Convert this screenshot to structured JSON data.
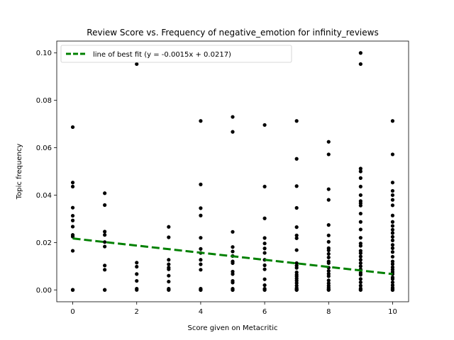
{
  "chart_data": {
    "type": "scatter",
    "title": "Review Score vs. Frequency of negative_emotion for infinity_reviews",
    "xlabel": "Score given on Metacritic",
    "ylabel": "Topic frequency",
    "xlim": [
      -0.5,
      10.5
    ],
    "ylim": [
      -0.005,
      0.105
    ],
    "xticks": [
      0,
      2,
      4,
      6,
      8,
      10
    ],
    "xtick_labels": [
      "0",
      "2",
      "4",
      "6",
      "8",
      "10"
    ],
    "yticks": [
      0.0,
      0.02,
      0.04,
      0.06,
      0.08,
      0.1
    ],
    "ytick_labels": [
      "0.00",
      "0.02",
      "0.04",
      "0.06",
      "0.08",
      "0.10"
    ],
    "grid": false,
    "legend_position": "top-left",
    "colors": {
      "points": "#000000",
      "fit_line": "#008000"
    },
    "series": [
      {
        "name": "",
        "type": "scatter",
        "x": [
          0,
          0,
          0,
          0,
          0,
          0,
          0,
          0,
          0,
          0,
          0,
          0,
          0,
          1,
          1,
          1,
          1,
          1,
          1,
          1,
          1,
          1,
          1,
          2,
          2,
          2,
          2,
          2,
          2,
          2,
          3,
          3,
          3,
          3,
          3,
          3,
          3,
          3,
          3,
          3,
          3,
          4,
          4,
          4,
          4,
          4,
          4,
          4,
          4,
          4,
          4,
          4,
          4,
          4,
          4,
          5,
          5,
          5,
          5,
          5,
          5,
          5,
          5,
          5,
          5,
          5,
          5,
          5,
          5,
          5,
          5,
          6,
          6,
          6,
          6,
          6,
          6,
          6,
          6,
          6,
          6,
          6,
          6,
          6,
          6,
          6,
          7,
          7,
          7,
          7,
          7,
          7,
          7,
          7,
          7,
          7,
          7,
          7,
          7,
          7,
          7,
          7,
          7,
          7,
          7,
          7,
          7,
          7,
          7,
          8,
          8,
          8,
          8,
          8,
          8,
          8,
          8,
          8,
          8,
          8,
          8,
          8,
          8,
          8,
          8,
          8,
          8,
          8,
          8,
          8,
          8,
          8,
          8,
          9,
          9,
          9,
          9,
          9,
          9,
          9,
          9,
          9,
          9,
          9,
          9,
          9,
          9,
          9,
          9,
          9,
          9,
          9,
          9,
          9,
          9,
          9,
          9,
          9,
          9,
          9,
          9,
          9,
          9,
          9,
          10,
          10,
          10,
          10,
          10,
          10,
          10,
          10,
          10,
          10,
          10,
          10,
          10,
          10,
          10,
          10,
          10,
          10,
          10,
          10,
          10,
          10,
          10,
          10,
          10,
          10,
          10,
          10,
          10,
          10,
          10,
          10,
          10
        ],
        "y": [
          0.0687,
          0.0453,
          0.0436,
          0.0347,
          0.0313,
          0.0293,
          0.0267,
          0.0232,
          0.0225,
          0.0165,
          0,
          0,
          0,
          0.0408,
          0.0358,
          0.0246,
          0.0232,
          0.0202,
          0.0183,
          0.0103,
          0.0085,
          0,
          0,
          0.0953,
          0.0115,
          0.0098,
          0.0067,
          0.0038,
          0.0005,
          0,
          0.0266,
          0.0222,
          0.0127,
          0.0108,
          0.0094,
          0.0087,
          0.006,
          0.0035,
          0.0005,
          0,
          0,
          0.0713,
          0.0445,
          0.0345,
          0.0314,
          0.022,
          0.0173,
          0.0156,
          0.0127,
          0.0108,
          0.0085,
          0.0005,
          0,
          0,
          0,
          0.073,
          0.0667,
          0.0245,
          0.0181,
          0.0162,
          0.0143,
          0.012,
          0.0113,
          0.0077,
          0.0067,
          0.0038,
          0.0031,
          0.0005,
          0,
          0,
          0,
          0.0696,
          0.0436,
          0.0302,
          0.0219,
          0.0196,
          0.0175,
          0.0156,
          0.0127,
          0.0104,
          0.0087,
          0.0045,
          0.002,
          0.0005,
          0,
          0,
          0.0713,
          0.0553,
          0.0438,
          0.0346,
          0.0265,
          0.023,
          0.0218,
          0.0168,
          0.0113,
          0.0102,
          0.0093,
          0.0074,
          0.0064,
          0.0057,
          0.0048,
          0.0039,
          0.0029,
          0.0018,
          0.0008,
          0.0004,
          0,
          0,
          0,
          0.0625,
          0.0572,
          0.0425,
          0.038,
          0.0274,
          0.023,
          0.0203,
          0.0176,
          0.0167,
          0.0152,
          0.0137,
          0.012,
          0.0113,
          0.0094,
          0.008,
          0.0068,
          0.0058,
          0.004,
          0.0028,
          0.0018,
          0.001,
          0.0004,
          0,
          0,
          0.1,
          0.0953,
          0.0512,
          0.05,
          0.0472,
          0.0436,
          0.04,
          0.0375,
          0.0366,
          0.0356,
          0.0322,
          0.0287,
          0.0255,
          0.022,
          0.0196,
          0.0186,
          0.0165,
          0.0155,
          0.0141,
          0.0127,
          0.0113,
          0.01,
          0.0087,
          0.0072,
          0.0064,
          0.0046,
          0.0032,
          0.0018,
          0.0006,
          0,
          0,
          0.0713,
          0.0572,
          0.0453,
          0.0418,
          0.04,
          0.038,
          0.0357,
          0.0314,
          0.0287,
          0.027,
          0.0254,
          0.024,
          0.0224,
          0.0209,
          0.019,
          0.0176,
          0.016,
          0.014,
          0.012,
          0.0109,
          0.0096,
          0.0086,
          0.0076,
          0.0067,
          0.0053,
          0.0046,
          0.0032,
          0.002,
          0.001,
          0.0005,
          0,
          0,
          0
        ]
      },
      {
        "name": "line of best fit (y = -0.0015x + 0.0217)",
        "type": "line",
        "slope": -0.0015,
        "intercept": 0.0217,
        "x_range": [
          0,
          10
        ]
      }
    ]
  }
}
